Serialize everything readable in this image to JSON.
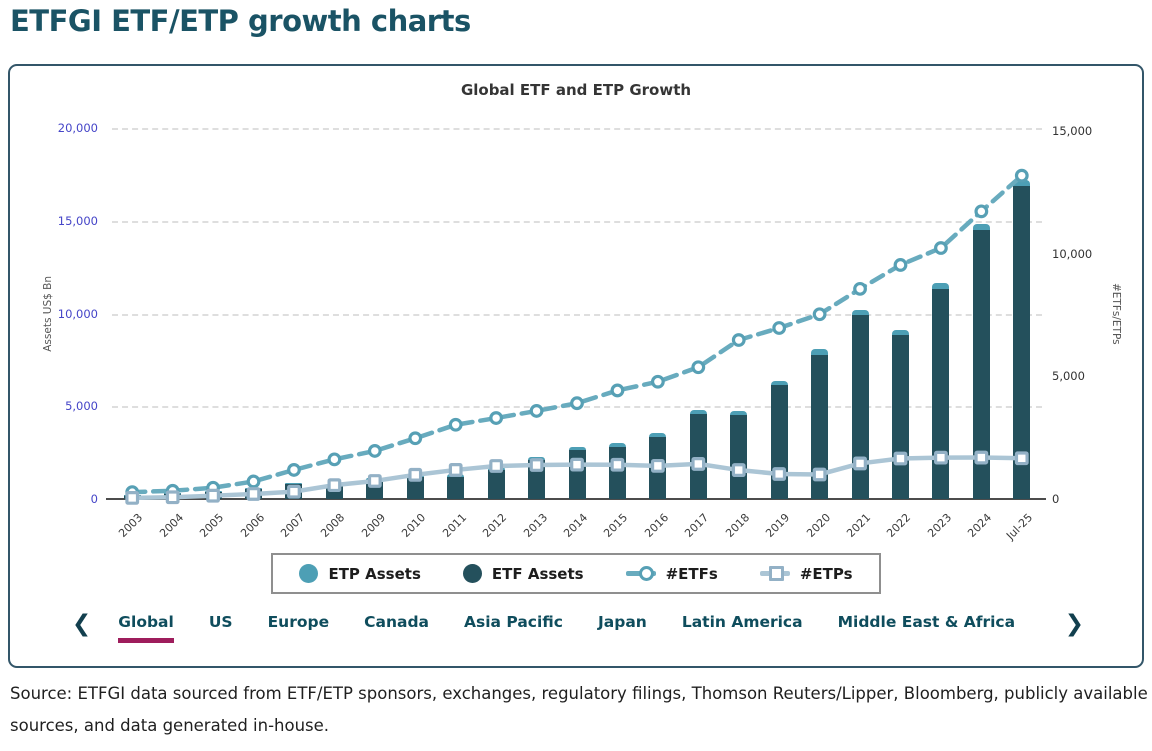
{
  "page": {
    "title": "ETFGI ETF/ETP growth charts",
    "source_note": "Source: ETFGI data sourced from ETF/ETP sponsors, exchanges, regulatory filings, Thomson Reuters/Lipper, Bloomberg, publicly available sources, and data generated in-house."
  },
  "colors": {
    "heading": "#1a5365",
    "card_border": "#335669",
    "bar_etf": "#24505c",
    "bar_etp": "#4d9fb5",
    "line_etfs": "#68abbe",
    "line_etps": "#abc5d5",
    "marker_etfs_stroke": "#57a0b5",
    "marker_etps_stroke": "#93b1c6",
    "left_tick": "#4545c8",
    "right_tick": "#333333",
    "active_tab_underline": "#9e1d5c"
  },
  "legend": {
    "items": [
      {
        "label": "ETP Assets",
        "icon": "filled-circle",
        "color": "#4d9fb5"
      },
      {
        "label": "ETF Assets",
        "icon": "filled-circle",
        "color": "#24505c"
      },
      {
        "label": "#ETFs",
        "icon": "line-open-circle",
        "color": "#68abbe",
        "marker_stroke": "#57a0b5"
      },
      {
        "label": "#ETPs",
        "icon": "line-open-square",
        "color": "#abc5d5",
        "marker_stroke": "#93b1c6"
      }
    ]
  },
  "tabs": {
    "prev_icon": "❮",
    "next_icon": "❯",
    "active": "Global",
    "items": [
      "Global",
      "US",
      "Europe",
      "Canada",
      "Asia Pacific",
      "Japan",
      "Latin America",
      "Middle East & Africa"
    ]
  },
  "chart_data": {
    "type": "bar+line",
    "title": "Global ETF and ETP Growth",
    "categories": [
      "2003",
      "2004",
      "2005",
      "2006",
      "2007",
      "2008",
      "2009",
      "2010",
      "2011",
      "2012",
      "2013",
      "2014",
      "2015",
      "2016",
      "2017",
      "2018",
      "2019",
      "2020",
      "2021",
      "2022",
      "2023",
      "2024",
      "Jul-25"
    ],
    "y1": {
      "label": "Assets US$ Bn",
      "ticks": [
        0,
        5000,
        10000,
        15000,
        20000
      ],
      "max": 20000,
      "grid": true
    },
    "y2": {
      "label": "#ETFs/ETPs",
      "ticks": [
        0,
        5000,
        10000,
        15000
      ],
      "max": 15122
    },
    "legend_position": "bottom",
    "series": [
      {
        "name": "ETP Assets",
        "type": "bar",
        "axis": "y1",
        "stack": "assets",
        "color": "#4d9fb5",
        "values": [
          15,
          20,
          28,
          42,
          68,
          75,
          120,
          145,
          155,
          165,
          175,
          185,
          195,
          200,
          220,
          215,
          230,
          285,
          300,
          260,
          300,
          340,
          310
        ]
      },
      {
        "name": "ETF Assets",
        "type": "bar",
        "axis": "y1",
        "stack": "assets",
        "color": "#24505c",
        "values": [
          205,
          300,
          400,
          540,
          790,
          700,
          1030,
          1170,
          1200,
          1590,
          2080,
          2620,
          2800,
          3350,
          4560,
          4510,
          6120,
          7780,
          9900,
          8840,
          11330,
          14510,
          16900
        ]
      },
      {
        "name": "#ETFs",
        "type": "line",
        "dash": true,
        "axis": "y2",
        "color": "#68abbe",
        "marker": "circle",
        "marker_stroke": "#57a0b5",
        "values": [
          280,
          335,
          460,
          715,
          1185,
          1615,
          1960,
          2475,
          3025,
          3300,
          3590,
          3905,
          4425,
          4780,
          5370,
          6480,
          6970,
          7530,
          8565,
          9540,
          10230,
          11725,
          13180
        ]
      },
      {
        "name": "#ETPs",
        "type": "line",
        "dash": false,
        "axis": "y2",
        "color": "#abc5d5",
        "marker": "square",
        "marker_stroke": "#93b1c6",
        "values": [
          45,
          70,
          135,
          205,
          300,
          565,
          735,
          985,
          1185,
          1345,
          1385,
          1400,
          1395,
          1350,
          1430,
          1180,
          1020,
          1000,
          1450,
          1650,
          1685,
          1690,
          1660
        ]
      }
    ]
  }
}
